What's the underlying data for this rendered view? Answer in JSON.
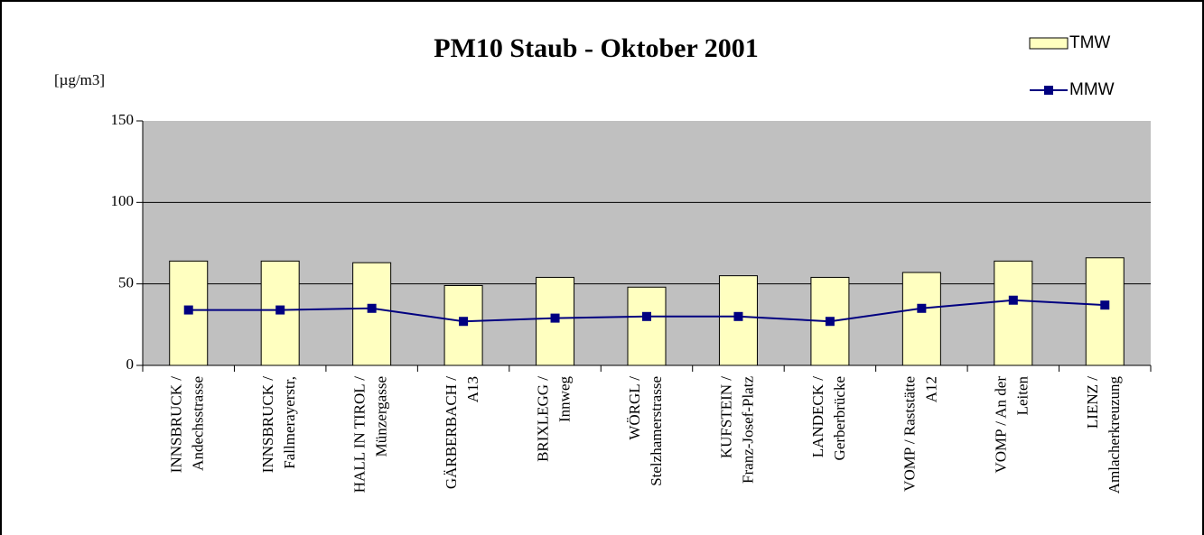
{
  "chart_data": {
    "type": "bar-line",
    "title": "PM10 Staub - Oktober 2001",
    "y_label": "[µg/m3]",
    "categories": [
      [
        "INNSBRUCK /",
        "Andechsstrasse"
      ],
      [
        "INNSBRUCK /",
        "Fallmerayerstr,"
      ],
      [
        "HALL IN TIROL /",
        "Münzergasse"
      ],
      [
        "GÄRBERBACH /",
        "A13"
      ],
      [
        "BRIXLEGG /",
        "Innweg"
      ],
      [
        "WÖRGL /",
        "Stelzhamerstrasse"
      ],
      [
        "KUFSTEIN /",
        "Franz-Josef-Platz"
      ],
      [
        "LANDECK /",
        "Gerberbrücke"
      ],
      [
        "VOMP / Raststätte",
        "A12"
      ],
      [
        "VOMP / An der",
        "Leiten"
      ],
      [
        "LIENZ /",
        "Amlacherkreuzung"
      ]
    ],
    "series": [
      {
        "name": "TMW",
        "type": "bar",
        "color": "#ffffc0",
        "values": [
          64,
          64,
          63,
          49,
          54,
          48,
          55,
          54,
          57,
          64,
          66
        ]
      },
      {
        "name": "MMW",
        "type": "line",
        "color": "#000080",
        "values": [
          34,
          34,
          35,
          27,
          29,
          30,
          30,
          27,
          35,
          40,
          37
        ]
      }
    ],
    "ylim": [
      0,
      150
    ],
    "yticks": [
      0,
      50,
      100,
      150
    ],
    "grid": true,
    "plot_background": "#c0c0c0",
    "legend": "top-right"
  }
}
